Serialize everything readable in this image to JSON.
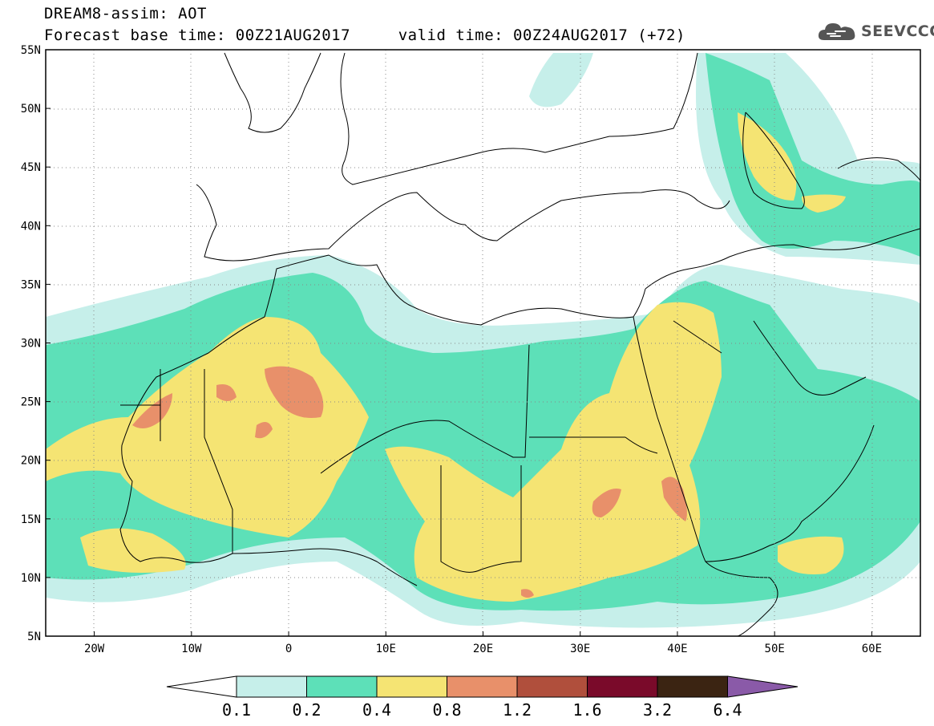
{
  "title": {
    "line1": "DREAM8-assim: AOT",
    "line2": "Forecast base time: 00Z21AUG2017     valid time: 00Z24AUG2017 (+72)"
  },
  "logo": {
    "text": "SEEVCCC",
    "icon": "cloud-icon"
  },
  "map": {
    "lat_range": [
      5,
      55
    ],
    "lon_range": [
      -25,
      65
    ],
    "lat_ticks": [
      "5N",
      "10N",
      "15N",
      "20N",
      "25N",
      "30N",
      "35N",
      "40N",
      "45N",
      "50N",
      "55N"
    ],
    "lon_ticks": [
      "20W",
      "10W",
      "0",
      "10E",
      "20E",
      "30E",
      "40E",
      "50E",
      "60E"
    ],
    "lon_tick_values": [
      -20,
      -10,
      0,
      10,
      20,
      30,
      40,
      50,
      60
    ],
    "lat_tick_values": [
      5,
      10,
      15,
      20,
      25,
      30,
      35,
      40,
      45,
      50,
      55
    ],
    "grid": "dotted"
  },
  "colorbar": {
    "labels": [
      "0.1",
      "0.2",
      "0.4",
      "0.8",
      "1.2",
      "1.6",
      "3.2",
      "6.4"
    ],
    "colors": [
      "#ffffff",
      "#c6efea",
      "#5de0b8",
      "#f5e473",
      "#e8906a",
      "#b04f3c",
      "#7a0a2a",
      "#3b2412",
      "#8a5aa8"
    ]
  }
}
